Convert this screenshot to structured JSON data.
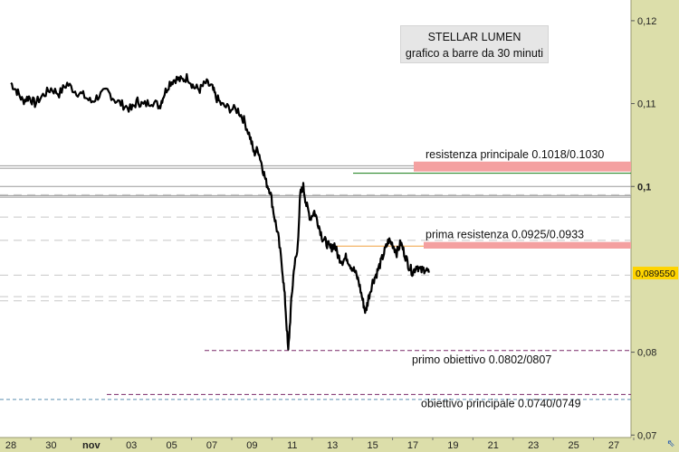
{
  "chart_data": {
    "type": "line",
    "title": "STELLAR LUMEN",
    "subtitle": "grafico a barre da 30 minuti",
    "y_ticks": [
      {
        "value": 0.12,
        "label": "0,12",
        "bold": false
      },
      {
        "value": 0.11,
        "label": "0,11",
        "bold": false
      },
      {
        "value": 0.1,
        "label": "0,1",
        "bold": true
      },
      {
        "value": 0.08,
        "label": "0,08",
        "bold": false
      },
      {
        "value": 0.07,
        "label": "0,07",
        "bold": false
      }
    ],
    "ylim": [
      0.0697,
      0.1225
    ],
    "x_ticks": [
      {
        "day": 0,
        "label": "28",
        "bold": false
      },
      {
        "day": 2,
        "label": "30",
        "bold": false
      },
      {
        "day": 4,
        "label": "nov",
        "bold": true
      },
      {
        "day": 6,
        "label": "03",
        "bold": false
      },
      {
        "day": 8,
        "label": "05",
        "bold": false
      },
      {
        "day": 10,
        "label": "07",
        "bold": false
      },
      {
        "day": 12,
        "label": "09",
        "bold": false
      },
      {
        "day": 14,
        "label": "11",
        "bold": false
      },
      {
        "day": 16,
        "label": "13",
        "bold": false
      },
      {
        "day": 18,
        "label": "15",
        "bold": false
      },
      {
        "day": 20,
        "label": "17",
        "bold": false
      },
      {
        "day": 22,
        "label": "19",
        "bold": false
      },
      {
        "day": 24,
        "label": "21",
        "bold": false
      },
      {
        "day": 26,
        "label": "23",
        "bold": false
      },
      {
        "day": 28,
        "label": "25",
        "bold": false
      },
      {
        "day": 30,
        "label": "27",
        "bold": false
      }
    ],
    "current_price": {
      "value": 0.08955,
      "label": "0,089550",
      "color": "#ffd400"
    },
    "zones": [
      {
        "name": "resistenza principale",
        "label": "resistenza principale 0.1018/0.1030",
        "low": 0.1018,
        "high": 0.103,
        "color": "#f4a0a0"
      },
      {
        "name": "prima resistenza",
        "label": "prima resistenza 0.0925/0.0933",
        "low": 0.0925,
        "high": 0.0933,
        "color": "#f4a0a0"
      }
    ],
    "targets": [
      {
        "name": "primo obiettivo",
        "label": "primo obiettivo 0.0802/0807",
        "value": 0.0802,
        "color": "#7a2a6a"
      },
      {
        "name": "obiettivo principale",
        "label": "obiettivo principale 0.0740/0749",
        "value": 0.0749,
        "color": "#7a2a6a"
      }
    ],
    "series": [
      {
        "values": [
          [
            0.0,
            0.1125
          ],
          [
            0.3,
            0.1115
          ],
          [
            0.6,
            0.1103
          ],
          [
            0.9,
            0.1108
          ],
          [
            1.2,
            0.11
          ],
          [
            1.6,
            0.111
          ],
          [
            2.0,
            0.1118
          ],
          [
            2.4,
            0.1112
          ],
          [
            2.8,
            0.1124
          ],
          [
            3.2,
            0.1115
          ],
          [
            3.6,
            0.111
          ],
          [
            4.0,
            0.1102
          ],
          [
            4.4,
            0.111
          ],
          [
            4.8,
            0.1115
          ],
          [
            5.2,
            0.1104
          ],
          [
            5.6,
            0.1098
          ],
          [
            6.0,
            0.1093
          ],
          [
            6.3,
            0.1103
          ],
          [
            6.6,
            0.1098
          ],
          [
            7.0,
            0.1103
          ],
          [
            7.4,
            0.1097
          ],
          [
            7.6,
            0.111
          ],
          [
            7.9,
            0.1125
          ],
          [
            8.2,
            0.113
          ],
          [
            8.5,
            0.1128
          ],
          [
            8.8,
            0.1132
          ],
          [
            9.1,
            0.112
          ],
          [
            9.4,
            0.1117
          ],
          [
            9.7,
            0.1125
          ],
          [
            10.0,
            0.112
          ],
          [
            10.2,
            0.1108
          ],
          [
            10.5,
            0.1098
          ],
          [
            10.9,
            0.1094
          ],
          [
            11.3,
            0.1092
          ],
          [
            11.6,
            0.108
          ],
          [
            11.9,
            0.106
          ],
          [
            12.1,
            0.104
          ],
          [
            12.3,
            0.1045
          ],
          [
            12.5,
            0.1025
          ],
          [
            12.7,
            0.1005
          ],
          [
            12.9,
            0.0995
          ],
          [
            13.1,
            0.0965
          ],
          [
            13.3,
            0.094
          ],
          [
            13.5,
            0.0902
          ],
          [
            13.65,
            0.086
          ],
          [
            13.8,
            0.08
          ],
          [
            13.95,
            0.086
          ],
          [
            14.1,
            0.0905
          ],
          [
            14.25,
            0.092
          ],
          [
            14.4,
            0.099
          ],
          [
            14.55,
            0.1
          ],
          [
            14.7,
            0.0978
          ],
          [
            14.9,
            0.0962
          ],
          [
            15.1,
            0.097
          ],
          [
            15.3,
            0.0955
          ],
          [
            15.5,
            0.0938
          ],
          [
            15.7,
            0.0932
          ],
          [
            15.9,
            0.0925
          ],
          [
            16.1,
            0.093
          ],
          [
            16.3,
            0.0915
          ],
          [
            16.5,
            0.091
          ],
          [
            16.7,
            0.0915
          ],
          [
            16.9,
            0.0905
          ],
          [
            17.1,
            0.0898
          ],
          [
            17.3,
            0.0886
          ],
          [
            17.5,
            0.0863
          ],
          [
            17.65,
            0.0848
          ],
          [
            17.8,
            0.0866
          ],
          [
            18.0,
            0.0885
          ],
          [
            18.2,
            0.0895
          ],
          [
            18.4,
            0.0908
          ],
          [
            18.6,
            0.0922
          ],
          [
            18.8,
            0.0935
          ],
          [
            19.0,
            0.093
          ],
          [
            19.2,
            0.092
          ],
          [
            19.4,
            0.0932
          ],
          [
            19.6,
            0.0918
          ],
          [
            19.8,
            0.0904
          ],
          [
            20.0,
            0.0896
          ],
          [
            20.2,
            0.0905
          ],
          [
            20.4,
            0.0898
          ],
          [
            20.6,
            0.0901
          ],
          [
            20.8,
            0.0896
          ]
        ],
        "color": "#000000"
      }
    ]
  }
}
